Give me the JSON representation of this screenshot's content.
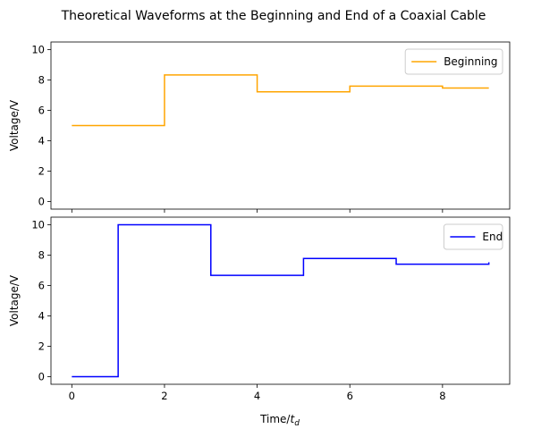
{
  "chart_data": {
    "type": "line",
    "title": "Theoretical Waveforms at the Beginning and End of a Coaxial Cable",
    "xlabel_prefix": "Time/",
    "xlabel_var": "t",
    "xlabel_sub": "d",
    "shared_x": true,
    "xlim": [
      -0.45,
      9.45
    ],
    "xticks": [
      0,
      2,
      4,
      6,
      8
    ],
    "subplots": [
      {
        "ylabel": "Voltage/V",
        "ylim": [
          -0.5,
          10.5
        ],
        "yticks": [
          0,
          2,
          4,
          6,
          8,
          10
        ],
        "legend_position": "upper-right",
        "series": [
          {
            "name": "Beginning",
            "color": "#FFA500",
            "step": "post",
            "x": [
              0,
              2,
              4,
              6,
              8,
              9
            ],
            "y": [
              5.0,
              8.333,
              7.222,
              7.593,
              7.469,
              7.469
            ]
          }
        ]
      },
      {
        "ylabel": "Voltage/V",
        "ylim": [
          -0.5,
          10.5
        ],
        "yticks": [
          0,
          2,
          4,
          6,
          8,
          10
        ],
        "legend_position": "upper-right",
        "series": [
          {
            "name": "End",
            "color": "#0000FF",
            "step": "post",
            "x": [
              0,
              1,
              3,
              5,
              7,
              9
            ],
            "y": [
              0.0,
              10.0,
              6.667,
              7.778,
              7.407,
              7.531
            ]
          }
        ]
      }
    ]
  }
}
